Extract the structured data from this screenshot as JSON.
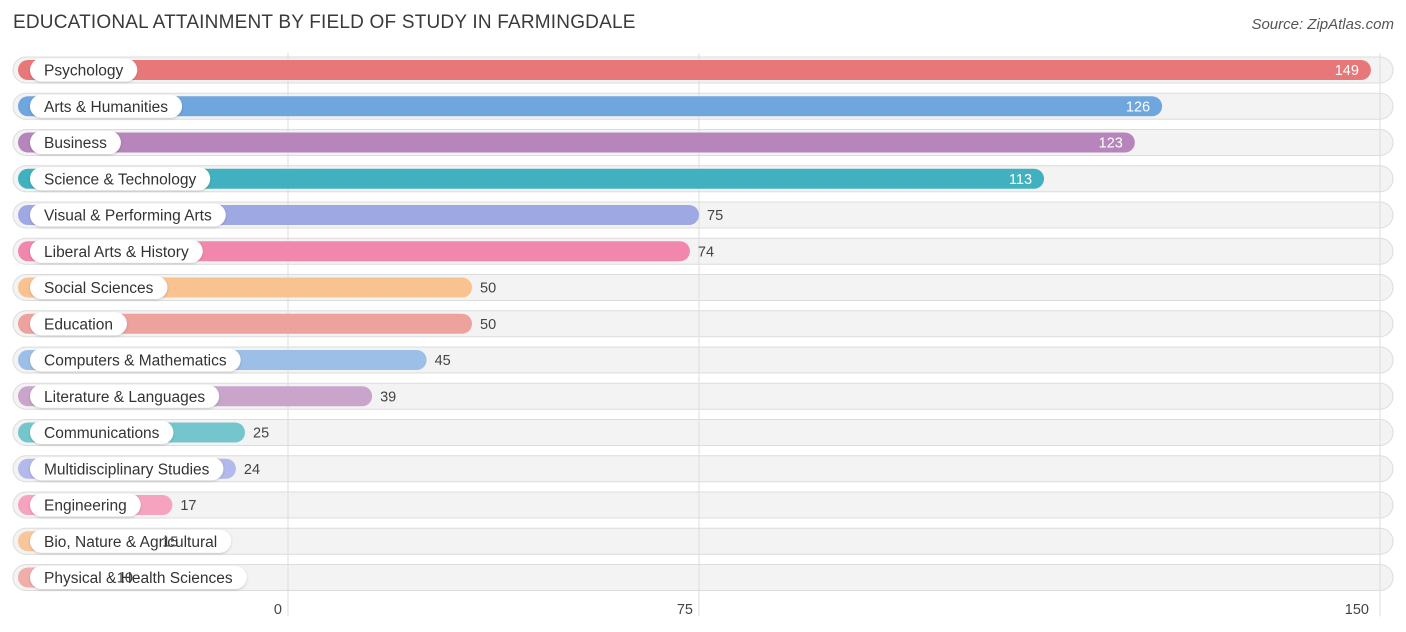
{
  "chart_data": {
    "type": "bar",
    "orientation": "horizontal",
    "title": "EDUCATIONAL ATTAINMENT BY FIELD OF STUDY IN FARMINGDALE",
    "source": "Source: ZipAtlas.com",
    "xlabel": "",
    "ylabel": "",
    "xlim": [
      0,
      150
    ],
    "ticks": [
      0,
      75,
      150
    ],
    "categories": [
      "Psychology",
      "Arts & Humanities",
      "Business",
      "Science & Technology",
      "Visual & Performing Arts",
      "Liberal Arts & History",
      "Social Sciences",
      "Education",
      "Computers & Mathematics",
      "Literature & Languages",
      "Communications",
      "Multidisciplinary Studies",
      "Engineering",
      "Bio, Nature & Agricultural",
      "Physical & Health Sciences"
    ],
    "values": [
      149,
      126,
      123,
      113,
      75,
      74,
      50,
      50,
      45,
      39,
      25,
      24,
      17,
      15,
      10
    ],
    "colors": [
      "#e8777a",
      "#6fa6de",
      "#b685bb",
      "#41b1bf",
      "#9ea9e4",
      "#f287ad",
      "#f9c391",
      "#eea29e",
      "#9bbfe6",
      "#c9a5cc",
      "#75c6cc",
      "#b3b9ea",
      "#f6a3bf",
      "#f8c69b",
      "#f0aeab"
    ]
  }
}
